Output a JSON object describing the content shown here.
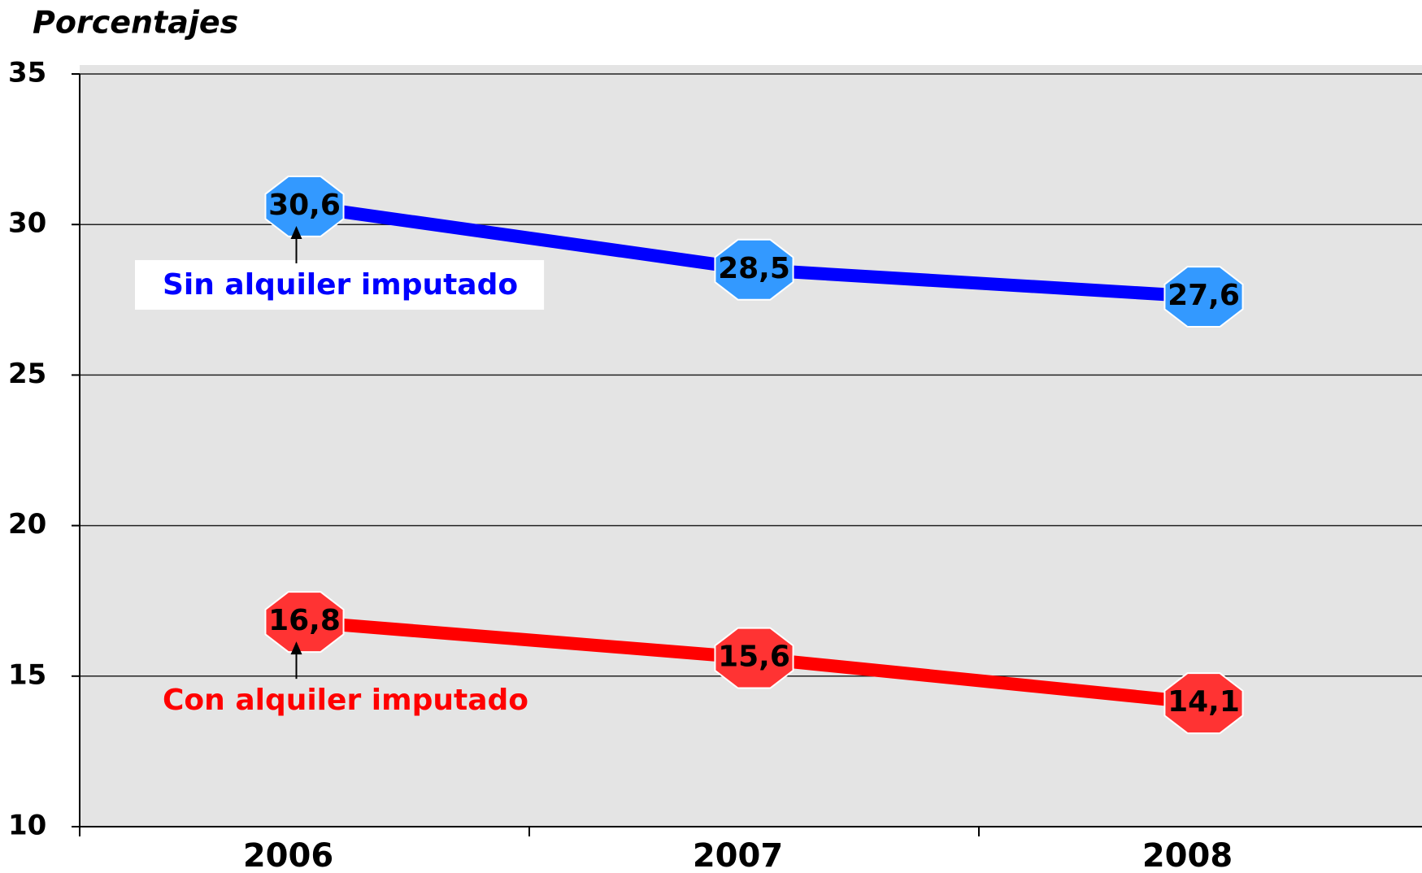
{
  "chart_data": {
    "type": "line",
    "y_label": "Porcentajes",
    "categories": [
      "2006",
      "2007",
      "2008"
    ],
    "series": [
      {
        "name": "Sin alquiler imputado",
        "color": "#0000ff",
        "marker_color": "#3399ff",
        "values": [
          30.6,
          28.5,
          27.6
        ],
        "value_labels": [
          "30,6",
          "28,5",
          "27,6"
        ]
      },
      {
        "name": "Con alquiler imputado",
        "color": "#ff0000",
        "marker_color": "#ff3333",
        "values": [
          16.8,
          15.6,
          14.1
        ],
        "value_labels": [
          "16,8",
          "15,6",
          "14,1"
        ]
      }
    ],
    "ylim": [
      10,
      35
    ],
    "yticks": [
      10,
      15,
      20,
      25,
      30,
      35
    ],
    "grid": true
  }
}
